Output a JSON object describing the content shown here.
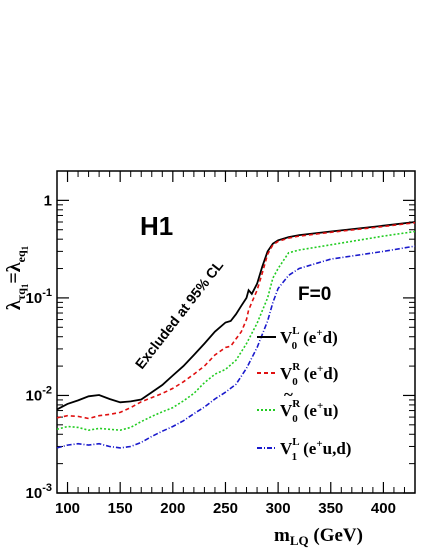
{
  "chart_data": {
    "type": "line",
    "experiment_label": "H1",
    "condition_label": "F=0",
    "annotation": "Excluded at 95% CL",
    "xlabel": {
      "main": "m",
      "sub": "LQ",
      "unit": " (GeV)"
    },
    "ylabel": {
      "lambda1": "λ",
      "sub1": "τq",
      "sub1b": "1",
      "eq": "=",
      "lambda2": "λ",
      "sub2": "eq",
      "sub2b": "1"
    },
    "xlim": [
      90,
      430
    ],
    "ylim": [
      0.001,
      2
    ],
    "yscale": "log",
    "x_ticks": [
      100,
      150,
      200,
      250,
      300,
      350,
      400
    ],
    "x_tick_labels": [
      "100",
      "150",
      "200",
      "250",
      "300",
      "350",
      "400"
    ],
    "y_ticks": [
      {
        "value": 0.001,
        "base": "10",
        "exp": "-3"
      },
      {
        "value": 0.01,
        "base": "10",
        "exp": "-2"
      },
      {
        "value": 0.1,
        "base": "10",
        "exp": "-1"
      },
      {
        "value": 1,
        "base": "1",
        "exp": ""
      }
    ],
    "series": [
      {
        "name": "V0L (e+d)",
        "legend": {
          "sym": "V",
          "tilde": false,
          "sub": "0",
          "sup": "L",
          "proc": "(e",
          "procsup": "+",
          "proc2": "d)"
        },
        "color": "#000000",
        "dash": "",
        "x": [
          90,
          100,
          110,
          120,
          130,
          140,
          150,
          160,
          170,
          180,
          190,
          200,
          210,
          220,
          230,
          240,
          250,
          255,
          260,
          265,
          270,
          272,
          275,
          280,
          285,
          290,
          295,
          300,
          310,
          320,
          350,
          400,
          430
        ],
        "y": [
          0.0072,
          0.0082,
          0.0089,
          0.0098,
          0.0101,
          0.0092,
          0.0085,
          0.0087,
          0.0091,
          0.0108,
          0.0128,
          0.016,
          0.02,
          0.026,
          0.034,
          0.045,
          0.056,
          0.058,
          0.068,
          0.083,
          0.1,
          0.12,
          0.11,
          0.14,
          0.21,
          0.3,
          0.36,
          0.39,
          0.42,
          0.44,
          0.48,
          0.55,
          0.6
        ]
      },
      {
        "name": "V0R (e+d)",
        "legend": {
          "sym": "V",
          "tilde": false,
          "sub": "0",
          "sup": "R",
          "proc": "(e",
          "procsup": "+",
          "proc2": "d)"
        },
        "color": "#e01010",
        "dash": "4,3",
        "x": [
          90,
          100,
          110,
          120,
          130,
          140,
          150,
          160,
          170,
          180,
          190,
          200,
          210,
          220,
          230,
          240,
          250,
          255,
          260,
          265,
          270,
          272,
          275,
          280,
          285,
          290,
          295,
          300,
          310,
          320,
          350,
          400,
          430
        ],
        "y": [
          0.0059,
          0.0062,
          0.0061,
          0.0058,
          0.0062,
          0.0064,
          0.0067,
          0.0075,
          0.0086,
          0.0095,
          0.0105,
          0.0118,
          0.0138,
          0.0165,
          0.02,
          0.026,
          0.031,
          0.032,
          0.038,
          0.045,
          0.06,
          0.075,
          0.09,
          0.12,
          0.18,
          0.28,
          0.35,
          0.38,
          0.41,
          0.43,
          0.47,
          0.54,
          0.59
        ]
      },
      {
        "name": "Ṽ0R (e+u)",
        "legend": {
          "sym": "V",
          "tilde": true,
          "sub": "0",
          "sup": "R",
          "proc": "(e",
          "procsup": "+",
          "proc2": "u)"
        },
        "color": "#22cc22",
        "dash": "2,2",
        "x": [
          90,
          100,
          110,
          120,
          130,
          140,
          150,
          160,
          170,
          180,
          190,
          200,
          210,
          220,
          230,
          240,
          250,
          260,
          270,
          280,
          290,
          295,
          300,
          310,
          320,
          350,
          400,
          430
        ],
        "y": [
          0.0045,
          0.0048,
          0.0047,
          0.0044,
          0.0046,
          0.0045,
          0.0044,
          0.0047,
          0.0054,
          0.0061,
          0.0068,
          0.0075,
          0.0088,
          0.0105,
          0.0135,
          0.0165,
          0.0185,
          0.023,
          0.034,
          0.055,
          0.1,
          0.16,
          0.2,
          0.29,
          0.31,
          0.35,
          0.43,
          0.48
        ]
      },
      {
        "name": "V1L (e+u,d)",
        "legend": {
          "sym": "V",
          "tilde": false,
          "sub": "1",
          "sup": "L",
          "proc": "(e",
          "procsup": "+",
          "proc2": "u,d)"
        },
        "color": "#1a1acc",
        "dash": "5,2,1,2",
        "x": [
          90,
          100,
          110,
          120,
          130,
          140,
          150,
          160,
          170,
          180,
          190,
          200,
          210,
          220,
          230,
          240,
          250,
          260,
          270,
          280,
          290,
          295,
          300,
          310,
          320,
          350,
          400,
          430
        ],
        "y": [
          0.0029,
          0.0031,
          0.0032,
          0.0031,
          0.0032,
          0.003,
          0.0029,
          0.003,
          0.0033,
          0.0038,
          0.0043,
          0.0048,
          0.0055,
          0.0065,
          0.0076,
          0.0092,
          0.0108,
          0.013,
          0.019,
          0.031,
          0.058,
          0.09,
          0.125,
          0.17,
          0.2,
          0.25,
          0.3,
          0.34
        ]
      }
    ]
  }
}
